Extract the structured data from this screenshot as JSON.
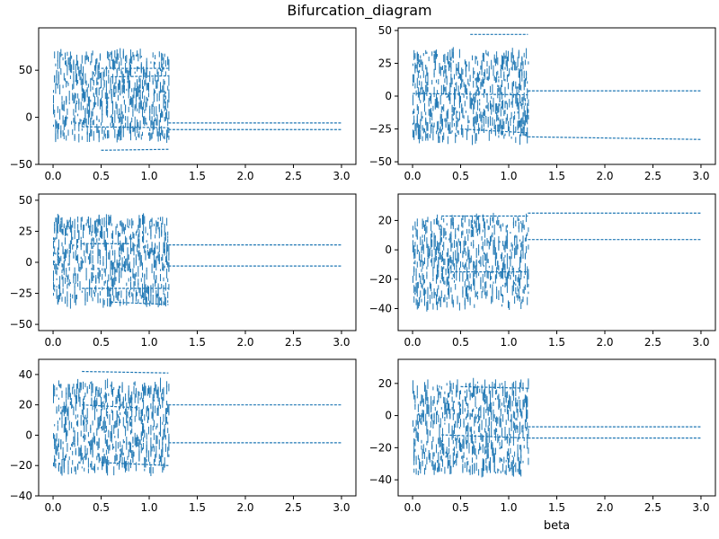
{
  "figure": {
    "title": "Bifurcation_diagram",
    "series_color": "#1f77b4"
  },
  "chart_data": [
    {
      "type": "scatter",
      "panel": "row1-col1",
      "xlim": [
        -0.15,
        3.15
      ],
      "ylim": [
        -50,
        95
      ],
      "xticks": [
        0.0,
        0.5,
        1.0,
        1.5,
        2.0,
        2.5,
        3.0
      ],
      "xtick_labels": [
        "0.0",
        "0.5",
        "1.0",
        "1.5",
        "2.0",
        "2.5",
        "3.0"
      ],
      "yticks": [
        -50,
        0,
        50
      ],
      "ytick_labels": [
        "−50",
        "0",
        "50"
      ],
      "xlabel": "",
      "chaotic_region": {
        "x": [
          0.0,
          1.2
        ],
        "y": [
          -42,
          88
        ]
      },
      "branches": [
        {
          "x": [
            0.5,
            1.2
          ],
          "y": [
            52,
            52
          ]
        },
        {
          "x": [
            0.6,
            1.2
          ],
          "y": [
            43,
            44
          ]
        },
        {
          "x": [
            0.3,
            1.2
          ],
          "y": [
            -10,
            -11
          ]
        },
        {
          "x": [
            0.5,
            1.2
          ],
          "y": [
            -35,
            -34
          ]
        },
        {
          "x": [
            1.2,
            3.0
          ],
          "y": [
            -6,
            -6
          ]
        },
        {
          "x": [
            1.2,
            3.0
          ],
          "y": [
            -13,
            -13
          ]
        }
      ]
    },
    {
      "type": "scatter",
      "panel": "row1-col2",
      "xlim": [
        -0.15,
        3.15
      ],
      "ylim": [
        -52,
        52
      ],
      "xticks": [
        0.0,
        0.5,
        1.0,
        1.5,
        2.0,
        2.5,
        3.0
      ],
      "xtick_labels": [
        "0.0",
        "0.5",
        "1.0",
        "1.5",
        "2.0",
        "2.5",
        "3.0"
      ],
      "yticks": [
        -50,
        -25,
        0,
        25,
        50
      ],
      "ytick_labels": [
        "−50",
        "−25",
        "0",
        "25",
        "50"
      ],
      "xlabel": "",
      "chaotic_region": {
        "x": [
          0.0,
          1.2
        ],
        "y": [
          -48,
          48
        ]
      },
      "branches": [
        {
          "x": [
            0.0,
            1.2
          ],
          "y": [
            2,
            1
          ]
        },
        {
          "x": [
            0.6,
            1.2
          ],
          "y": [
            47,
            47
          ]
        },
        {
          "x": [
            0.5,
            1.2
          ],
          "y": [
            -25,
            -28
          ]
        },
        {
          "x": [
            1.2,
            3.0
          ],
          "y": [
            4,
            4
          ]
        },
        {
          "x": [
            1.2,
            3.0
          ],
          "y": [
            -31,
            -33
          ]
        }
      ]
    },
    {
      "type": "scatter",
      "panel": "row2-col1",
      "xlim": [
        -0.15,
        3.15
      ],
      "ylim": [
        -55,
        55
      ],
      "xticks": [
        0.0,
        0.5,
        1.0,
        1.5,
        2.0,
        2.5,
        3.0
      ],
      "xtick_labels": [
        "0.0",
        "0.5",
        "1.0",
        "1.5",
        "2.0",
        "2.5",
        "3.0"
      ],
      "yticks": [
        -50,
        -25,
        0,
        25,
        50
      ],
      "ytick_labels": [
        "−50",
        "−25",
        "0",
        "25",
        "50"
      ],
      "xlabel": "",
      "chaotic_region": {
        "x": [
          0.0,
          1.2
        ],
        "y": [
          -48,
          50
        ]
      },
      "branches": [
        {
          "x": [
            0.3,
            1.2
          ],
          "y": [
            -21,
            -21
          ]
        },
        {
          "x": [
            0.6,
            1.2
          ],
          "y": [
            -32,
            -34
          ]
        },
        {
          "x": [
            0.3,
            0.8
          ],
          "y": [
            15,
            15
          ]
        },
        {
          "x": [
            1.2,
            3.0
          ],
          "y": [
            14,
            14
          ]
        },
        {
          "x": [
            1.2,
            3.0
          ],
          "y": [
            -3,
            -3
          ]
        }
      ]
    },
    {
      "type": "scatter",
      "panel": "row2-col2",
      "xlim": [
        -0.15,
        3.15
      ],
      "ylim": [
        -55,
        38
      ],
      "xticks": [
        0.0,
        0.5,
        1.0,
        1.5,
        2.0,
        2.5,
        3.0
      ],
      "xtick_labels": [
        "0.0",
        "0.5",
        "1.0",
        "1.5",
        "2.0",
        "2.5",
        "3.0"
      ],
      "yticks": [
        -40,
        -20,
        0,
        20
      ],
      "ytick_labels": [
        "−40",
        "−20",
        "0",
        "20"
      ],
      "xlabel": "",
      "chaotic_region": {
        "x": [
          0.0,
          1.2
        ],
        "y": [
          -52,
          35
        ]
      },
      "branches": [
        {
          "x": [
            0.4,
            1.2
          ],
          "y": [
            -15,
            -15
          ]
        },
        {
          "x": [
            0.3,
            1.2
          ],
          "y": [
            23,
            23
          ]
        },
        {
          "x": [
            1.2,
            3.0
          ],
          "y": [
            25,
            25
          ]
        },
        {
          "x": [
            1.2,
            3.0
          ],
          "y": [
            7,
            7
          ]
        }
      ]
    },
    {
      "type": "scatter",
      "panel": "row3-col1",
      "xlim": [
        -0.15,
        3.15
      ],
      "ylim": [
        -40,
        50
      ],
      "xticks": [
        0.0,
        0.5,
        1.0,
        1.5,
        2.0,
        2.5,
        3.0
      ],
      "xtick_labels": [
        "0.0",
        "0.5",
        "1.0",
        "1.5",
        "2.0",
        "2.5",
        "3.0"
      ],
      "yticks": [
        -40,
        -20,
        0,
        20,
        40
      ],
      "ytick_labels": [
        "−40",
        "−20",
        "0",
        "20",
        "40"
      ],
      "xlabel": "",
      "chaotic_region": {
        "x": [
          0.0,
          1.2
        ],
        "y": [
          -36,
          47
        ]
      },
      "branches": [
        {
          "x": [
            0.3,
            1.2
          ],
          "y": [
            42,
            41
          ]
        },
        {
          "x": [
            0.5,
            1.2
          ],
          "y": [
            -18,
            -20
          ]
        },
        {
          "x": [
            0.3,
            0.9
          ],
          "y": [
            20,
            18
          ]
        },
        {
          "x": [
            1.2,
            3.0
          ],
          "y": [
            20,
            20
          ]
        },
        {
          "x": [
            1.2,
            3.0
          ],
          "y": [
            -5,
            -5
          ]
        }
      ]
    },
    {
      "type": "scatter",
      "panel": "row3-col2",
      "xlim": [
        -0.15,
        3.15
      ],
      "ylim": [
        -50,
        35
      ],
      "xticks": [
        0.0,
        0.5,
        1.0,
        1.5,
        2.0,
        2.5,
        3.0
      ],
      "xtick_labels": [
        "0.0",
        "0.5",
        "1.0",
        "1.5",
        "2.0",
        "2.5",
        "3.0"
      ],
      "yticks": [
        -40,
        -20,
        0,
        20
      ],
      "ytick_labels": [
        "−40",
        "−20",
        "0",
        "20"
      ],
      "xlabel": "beta",
      "chaotic_region": {
        "x": [
          0.0,
          1.2
        ],
        "y": [
          -48,
          33
        ]
      },
      "branches": [
        {
          "x": [
            0.5,
            1.2
          ],
          "y": [
            18,
            17
          ]
        },
        {
          "x": [
            0.3,
            1.2
          ],
          "y": [
            -12,
            -14
          ]
        },
        {
          "x": [
            1.2,
            3.0
          ],
          "y": [
            -7,
            -7
          ]
        },
        {
          "x": [
            1.2,
            3.0
          ],
          "y": [
            -14,
            -14
          ]
        }
      ]
    }
  ]
}
